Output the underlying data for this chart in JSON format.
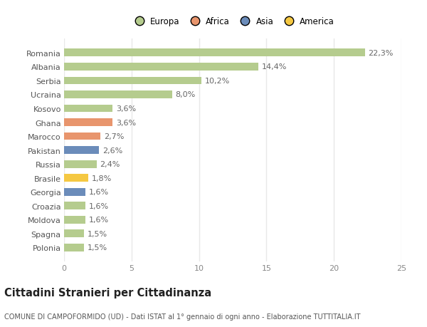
{
  "countries": [
    "Polonia",
    "Spagna",
    "Moldova",
    "Croazia",
    "Georgia",
    "Brasile",
    "Russia",
    "Pakistan",
    "Marocco",
    "Ghana",
    "Kosovo",
    "Ucraina",
    "Serbia",
    "Albania",
    "Romania"
  ],
  "values": [
    1.5,
    1.5,
    1.6,
    1.6,
    1.6,
    1.8,
    2.4,
    2.6,
    2.7,
    3.6,
    3.6,
    8.0,
    10.2,
    14.4,
    22.3
  ],
  "labels": [
    "1,5%",
    "1,5%",
    "1,6%",
    "1,6%",
    "1,6%",
    "1,8%",
    "2,4%",
    "2,6%",
    "2,7%",
    "3,6%",
    "3,6%",
    "8,0%",
    "10,2%",
    "14,4%",
    "22,3%"
  ],
  "colors": [
    "#b5cc8e",
    "#b5cc8e",
    "#b5cc8e",
    "#b5cc8e",
    "#6b8cba",
    "#f5c842",
    "#b5cc8e",
    "#6b8cba",
    "#e8956d",
    "#e8956d",
    "#b5cc8e",
    "#b5cc8e",
    "#b5cc8e",
    "#b5cc8e",
    "#b5cc8e"
  ],
  "continent_colors": {
    "Europa": "#b5cc8e",
    "Africa": "#e8956d",
    "Asia": "#6b8cba",
    "America": "#f5c842"
  },
  "xlim": [
    0,
    25
  ],
  "xticks": [
    0,
    5,
    10,
    15,
    20,
    25
  ],
  "title": "Cittadini Stranieri per Cittadinanza",
  "subtitle": "COMUNE DI CAMPOFORMIDO (UD) - Dati ISTAT al 1° gennaio di ogni anno - Elaborazione TUTTITALIA.IT",
  "background_color": "#ffffff",
  "grid_color": "#e8e8e8",
  "bar_height": 0.55,
  "label_fontsize": 8,
  "tick_fontsize": 8,
  "title_fontsize": 10.5,
  "subtitle_fontsize": 7
}
